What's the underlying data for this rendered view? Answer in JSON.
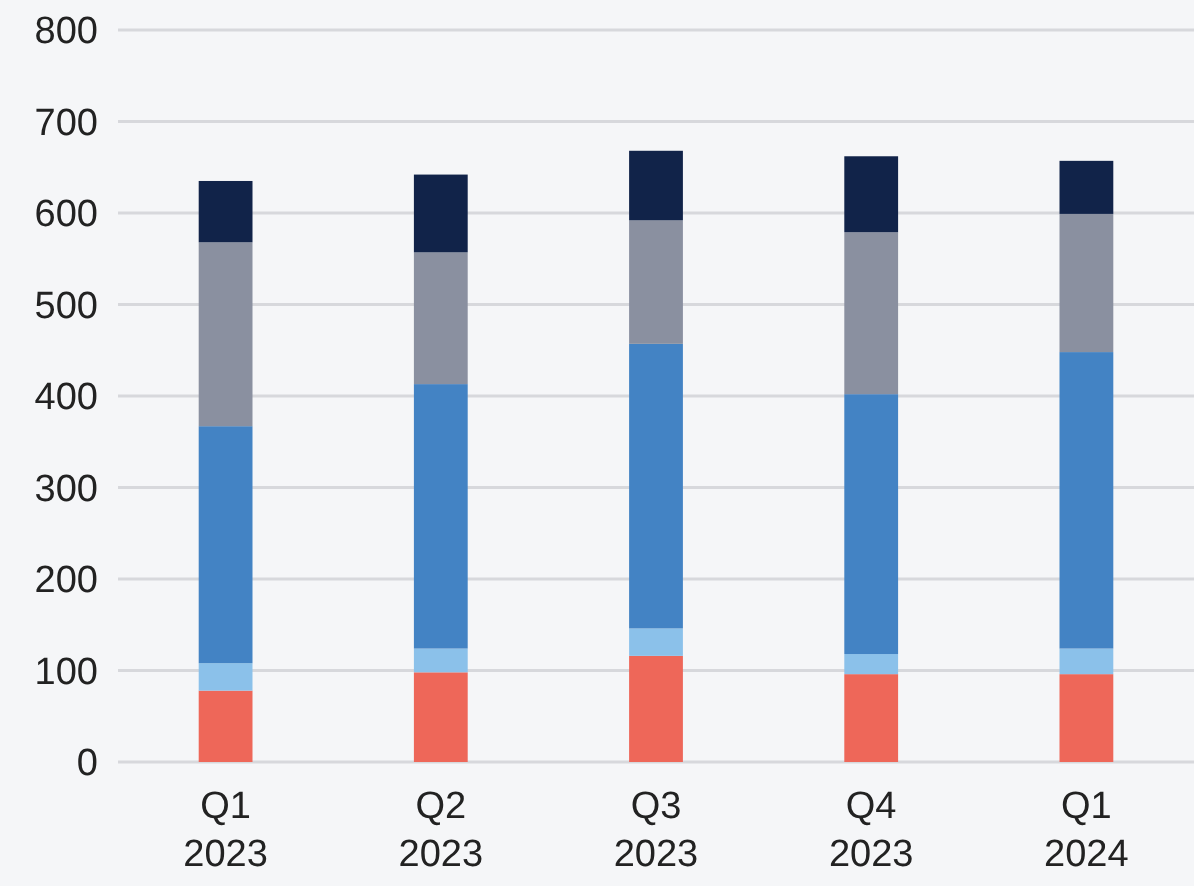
{
  "chart_data": {
    "type": "bar",
    "stacked": true,
    "categories": [
      "Q1 2023",
      "Q2 2023",
      "Q3 2023",
      "Q4 2023",
      "Q1 2024"
    ],
    "series": [
      {
        "color": "#ee6759",
        "values": [
          78,
          98,
          116,
          96,
          96
        ]
      },
      {
        "color": "#8bc1ea",
        "values": [
          30,
          26,
          30,
          22,
          28
        ]
      },
      {
        "color": "#4383c4",
        "values": [
          259,
          289,
          311,
          284,
          324
        ]
      },
      {
        "color": "#8a90a0",
        "values": [
          201,
          144,
          135,
          177,
          151
        ]
      },
      {
        "color": "#112349",
        "values": [
          67,
          85,
          76,
          83,
          58
        ]
      }
    ],
    "ylim": [
      0,
      800
    ],
    "yticks": [
      0,
      100,
      200,
      300,
      400,
      500,
      600,
      700,
      800
    ],
    "grid": "y"
  }
}
